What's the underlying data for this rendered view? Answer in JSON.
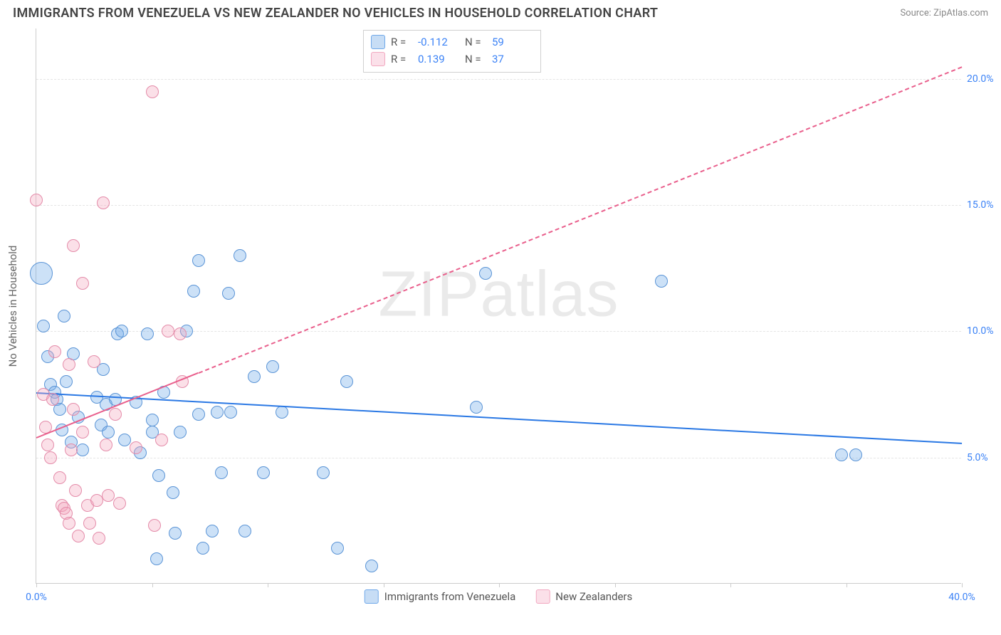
{
  "title": "IMMIGRANTS FROM VENEZUELA VS NEW ZEALANDER NO VEHICLES IN HOUSEHOLD CORRELATION CHART",
  "source_label": "Source:",
  "source_name": "ZipAtlas.com",
  "y_axis_label": "No Vehicles in Household",
  "watermark": "ZIPatlas",
  "chart": {
    "type": "scatter",
    "xlim": [
      0,
      40
    ],
    "ylim": [
      0,
      22
    ],
    "x_ticks": [
      0,
      5,
      10,
      15,
      20,
      25,
      30,
      35,
      40
    ],
    "x_tick_labels": {
      "0": "0.0%",
      "40": "40.0%"
    },
    "y_gridlines": [
      5,
      10,
      15,
      20
    ],
    "y_tick_labels": {
      "5": "5.0%",
      "10": "10.0%",
      "15": "15.0%",
      "20": "20.0%"
    },
    "background_color": "#ffffff",
    "grid_color": "#e5e5e5",
    "axis_color": "#cccccc",
    "series": [
      {
        "name": "Immigrants from Venezuela",
        "color_fill": "rgba(110,168,233,0.35)",
        "color_stroke": "#5a94d6",
        "legend_swatch_fill": "#c7ddf5",
        "legend_swatch_stroke": "#6fa8e9",
        "r_label": "R =",
        "r_value": "-0.112",
        "n_label": "N =",
        "n_value": "59",
        "base_radius": 9,
        "trend": {
          "x1": 0,
          "y1": 7.6,
          "x2": 40,
          "y2": 5.6,
          "color": "#2a78e4",
          "width": 2.5,
          "dashed": false
        },
        "points": [
          {
            "x": 0.2,
            "y": 12.3,
            "r": 16
          },
          {
            "x": 0.3,
            "y": 10.2
          },
          {
            "x": 0.5,
            "y": 9.0
          },
          {
            "x": 0.6,
            "y": 7.9
          },
          {
            "x": 0.8,
            "y": 7.6
          },
          {
            "x": 0.9,
            "y": 7.3
          },
          {
            "x": 1.0,
            "y": 6.9
          },
          {
            "x": 1.2,
            "y": 10.6
          },
          {
            "x": 1.3,
            "y": 8.0
          },
          {
            "x": 1.5,
            "y": 5.6
          },
          {
            "x": 1.6,
            "y": 9.1
          },
          {
            "x": 1.8,
            "y": 6.6
          },
          {
            "x": 2.6,
            "y": 7.4
          },
          {
            "x": 2.8,
            "y": 6.3
          },
          {
            "x": 2.9,
            "y": 8.5
          },
          {
            "x": 3.0,
            "y": 7.1
          },
          {
            "x": 3.1,
            "y": 6.0
          },
          {
            "x": 3.4,
            "y": 7.3
          },
          {
            "x": 3.5,
            "y": 9.9
          },
          {
            "x": 3.7,
            "y": 10.0
          },
          {
            "x": 3.8,
            "y": 5.7
          },
          {
            "x": 4.3,
            "y": 7.2
          },
          {
            "x": 4.8,
            "y": 9.9
          },
          {
            "x": 5.0,
            "y": 6.5
          },
          {
            "x": 5.0,
            "y": 6.0
          },
          {
            "x": 5.2,
            "y": 1.0
          },
          {
            "x": 5.3,
            "y": 4.3
          },
          {
            "x": 5.5,
            "y": 7.6
          },
          {
            "x": 6.0,
            "y": 2.0
          },
          {
            "x": 6.2,
            "y": 6.0
          },
          {
            "x": 6.5,
            "y": 10.0
          },
          {
            "x": 6.8,
            "y": 11.6
          },
          {
            "x": 7.0,
            "y": 12.8
          },
          {
            "x": 7.0,
            "y": 6.7
          },
          {
            "x": 7.2,
            "y": 1.4
          },
          {
            "x": 7.6,
            "y": 2.1
          },
          {
            "x": 7.8,
            "y": 6.8
          },
          {
            "x": 8.0,
            "y": 4.4
          },
          {
            "x": 8.3,
            "y": 11.5
          },
          {
            "x": 8.4,
            "y": 6.8
          },
          {
            "x": 8.8,
            "y": 13.0
          },
          {
            "x": 9.0,
            "y": 2.1
          },
          {
            "x": 9.4,
            "y": 8.2
          },
          {
            "x": 9.8,
            "y": 4.4
          },
          {
            "x": 10.2,
            "y": 8.6
          },
          {
            "x": 10.6,
            "y": 6.8
          },
          {
            "x": 12.4,
            "y": 4.4
          },
          {
            "x": 13.0,
            "y": 1.4
          },
          {
            "x": 13.4,
            "y": 8.0
          },
          {
            "x": 14.5,
            "y": 0.7
          },
          {
            "x": 19.0,
            "y": 7.0
          },
          {
            "x": 19.4,
            "y": 12.3
          },
          {
            "x": 27.0,
            "y": 12.0
          },
          {
            "x": 34.8,
            "y": 5.1
          },
          {
            "x": 35.4,
            "y": 5.1
          },
          {
            "x": 4.5,
            "y": 5.2
          },
          {
            "x": 5.9,
            "y": 3.6
          },
          {
            "x": 2.0,
            "y": 5.3
          },
          {
            "x": 1.1,
            "y": 6.1
          }
        ]
      },
      {
        "name": "New Zealanders",
        "color_fill": "rgba(244,166,189,0.35)",
        "color_stroke": "#e48ba9",
        "legend_swatch_fill": "#fbe0e9",
        "legend_swatch_stroke": "#f2a8c0",
        "r_label": "R =",
        "r_value": "0.139",
        "n_label": "N =",
        "n_value": "37",
        "base_radius": 9,
        "trend": {
          "x1": 0,
          "y1": 5.8,
          "x2": 40,
          "y2": 20.5,
          "color": "#e95f8c",
          "width": 2,
          "dashed": true,
          "solid_until_x": 7.0
        },
        "points": [
          {
            "x": 0.0,
            "y": 15.2
          },
          {
            "x": 0.3,
            "y": 7.5
          },
          {
            "x": 0.4,
            "y": 6.2
          },
          {
            "x": 0.5,
            "y": 5.5
          },
          {
            "x": 0.6,
            "y": 5.0
          },
          {
            "x": 0.7,
            "y": 7.3
          },
          {
            "x": 0.8,
            "y": 9.2
          },
          {
            "x": 1.0,
            "y": 4.2
          },
          {
            "x": 1.1,
            "y": 3.1
          },
          {
            "x": 1.2,
            "y": 3.0
          },
          {
            "x": 1.3,
            "y": 2.8
          },
          {
            "x": 1.4,
            "y": 8.7
          },
          {
            "x": 1.4,
            "y": 2.4
          },
          {
            "x": 1.5,
            "y": 5.3
          },
          {
            "x": 1.6,
            "y": 6.9
          },
          {
            "x": 1.6,
            "y": 13.4
          },
          {
            "x": 1.7,
            "y": 3.7
          },
          {
            "x": 1.8,
            "y": 1.9
          },
          {
            "x": 2.0,
            "y": 6.0
          },
          {
            "x": 2.0,
            "y": 11.9
          },
          {
            "x": 2.2,
            "y": 3.1
          },
          {
            "x": 2.3,
            "y": 2.4
          },
          {
            "x": 2.5,
            "y": 8.8
          },
          {
            "x": 2.6,
            "y": 3.3
          },
          {
            "x": 2.7,
            "y": 1.8
          },
          {
            "x": 2.9,
            "y": 15.1
          },
          {
            "x": 3.0,
            "y": 5.5
          },
          {
            "x": 3.1,
            "y": 3.5
          },
          {
            "x": 3.4,
            "y": 6.7
          },
          {
            "x": 3.6,
            "y": 3.2
          },
          {
            "x": 4.3,
            "y": 5.4
          },
          {
            "x": 5.0,
            "y": 19.5
          },
          {
            "x": 5.1,
            "y": 2.3
          },
          {
            "x": 5.4,
            "y": 5.7
          },
          {
            "x": 5.7,
            "y": 10.0
          },
          {
            "x": 6.2,
            "y": 9.9
          },
          {
            "x": 6.3,
            "y": 8.0
          }
        ]
      }
    ]
  },
  "colors": {
    "title": "#444444",
    "source": "#888888",
    "value_blue": "#3b82f6",
    "x_label": "#3b82f6",
    "y_label": "#3b82f6"
  }
}
